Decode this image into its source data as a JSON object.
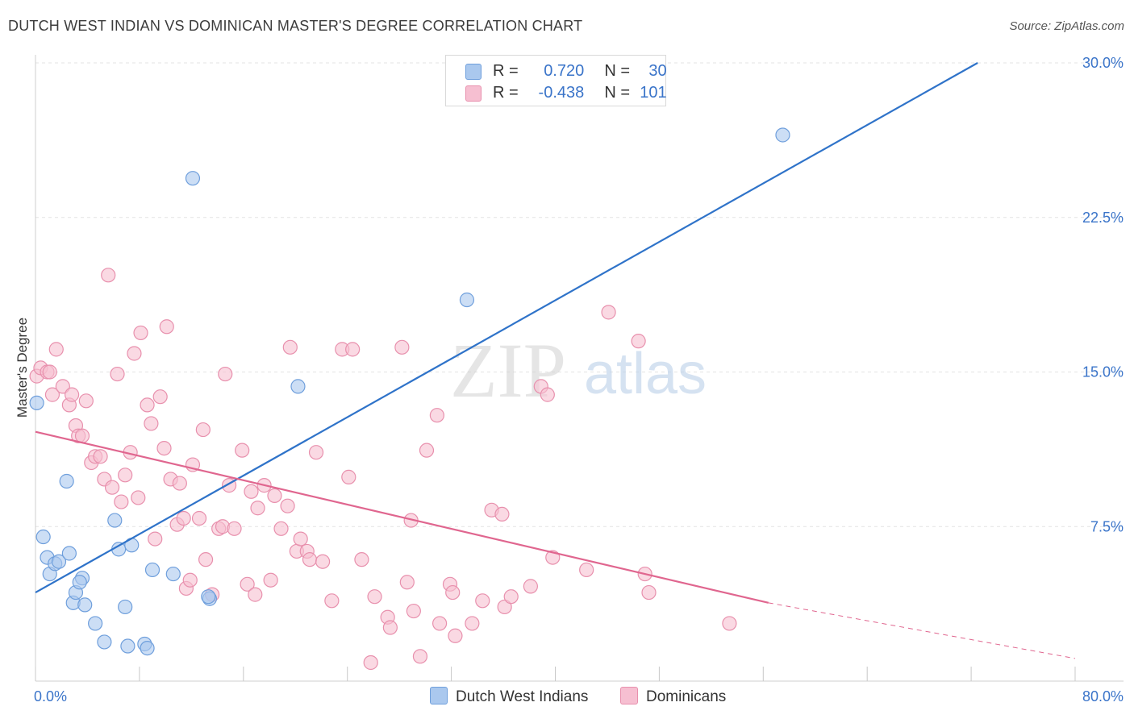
{
  "title": "DUTCH WEST INDIAN VS DOMINICAN MASTER'S DEGREE CORRELATION CHART",
  "source": "Source: ZipAtlas.com",
  "watermark": {
    "zip": "ZIP",
    "atlas": "atlas"
  },
  "legend": {
    "series1": {
      "r_label": "R =",
      "r_value": "0.720",
      "n_label": "N =",
      "n_value": "30"
    },
    "series2": {
      "r_label": "R =",
      "r_value": "-0.438",
      "n_label": "N =",
      "n_value": "101"
    }
  },
  "bottom_legend": {
    "series1": "Dutch West Indians",
    "series2": "Dominicans"
  },
  "colors": {
    "blue_fill": "#aac8ee",
    "blue_stroke": "#6f9fdc",
    "blue_line": "#2f73c9",
    "pink_fill": "#f6bfd1",
    "pink_stroke": "#e890ad",
    "pink_line": "#e0668f",
    "axis_text": "#3a74c9",
    "grid": "#e3e3e3"
  },
  "chart_data": {
    "type": "scatter",
    "title": "DUTCH WEST INDIAN VS DOMINICAN MASTER'S DEGREE CORRELATION CHART",
    "xlabel": "",
    "ylabel": "Master's Degree",
    "xlim": [
      0,
      80
    ],
    "ylim": [
      0,
      30
    ],
    "x_tick_labels": [
      "0.0%",
      "80.0%"
    ],
    "y_ticks": [
      7.5,
      15.0,
      22.5,
      30.0
    ],
    "y_tick_labels": [
      "7.5%",
      "15.0%",
      "22.5%",
      "30.0%"
    ],
    "grid": "horizontal dashed",
    "series": [
      {
        "name": "Dutch West Indians",
        "r": 0.72,
        "n": 30,
        "trend": {
          "x": [
            0,
            72.5
          ],
          "y": [
            4.3,
            30.0
          ]
        },
        "points": [
          [
            0.1,
            13.5
          ],
          [
            0.6,
            7.0
          ],
          [
            0.9,
            6.0
          ],
          [
            1.1,
            5.2
          ],
          [
            1.5,
            5.7
          ],
          [
            1.8,
            5.8
          ],
          [
            2.4,
            9.7
          ],
          [
            2.6,
            6.2
          ],
          [
            3.6,
            5.0
          ],
          [
            2.9,
            3.8
          ],
          [
            3.1,
            4.3
          ],
          [
            3.4,
            4.8
          ],
          [
            3.8,
            3.7
          ],
          [
            4.6,
            2.8
          ],
          [
            5.3,
            1.9
          ],
          [
            6.1,
            7.8
          ],
          [
            6.4,
            6.4
          ],
          [
            6.9,
            3.6
          ],
          [
            7.1,
            1.7
          ],
          [
            7.4,
            6.6
          ],
          [
            8.4,
            1.8
          ],
          [
            8.6,
            1.6
          ],
          [
            9.0,
            5.4
          ],
          [
            10.6,
            5.2
          ],
          [
            12.1,
            24.4
          ],
          [
            13.4,
            4.0
          ],
          [
            20.2,
            14.3
          ],
          [
            33.2,
            18.5
          ],
          [
            57.5,
            26.5
          ],
          [
            13.3,
            4.1
          ]
        ]
      },
      {
        "name": "Dominicans",
        "r": -0.438,
        "n": 101,
        "trend": {
          "x": [
            0,
            56.4
          ],
          "y": [
            12.1,
            3.8
          ]
        },
        "trend_extension": {
          "x": [
            56.4,
            80
          ],
          "y": [
            3.8,
            1.1
          ]
        },
        "points": [
          [
            0.1,
            14.8
          ],
          [
            0.4,
            15.2
          ],
          [
            0.9,
            15.0
          ],
          [
            1.1,
            15.0
          ],
          [
            1.3,
            13.9
          ],
          [
            1.6,
            16.1
          ],
          [
            2.1,
            14.3
          ],
          [
            2.6,
            13.4
          ],
          [
            2.8,
            13.9
          ],
          [
            3.1,
            12.4
          ],
          [
            3.3,
            11.9
          ],
          [
            3.6,
            11.9
          ],
          [
            3.9,
            13.6
          ],
          [
            4.3,
            10.6
          ],
          [
            4.6,
            10.9
          ],
          [
            5.0,
            10.9
          ],
          [
            5.3,
            9.8
          ],
          [
            5.6,
            19.7
          ],
          [
            5.9,
            9.4
          ],
          [
            6.3,
            14.9
          ],
          [
            6.6,
            8.7
          ],
          [
            6.9,
            10.0
          ],
          [
            7.3,
            11.1
          ],
          [
            7.6,
            15.9
          ],
          [
            7.9,
            8.9
          ],
          [
            8.1,
            16.9
          ],
          [
            8.6,
            13.4
          ],
          [
            8.9,
            12.5
          ],
          [
            9.2,
            6.9
          ],
          [
            9.6,
            13.8
          ],
          [
            9.9,
            11.3
          ],
          [
            10.1,
            17.2
          ],
          [
            10.4,
            9.8
          ],
          [
            10.9,
            7.6
          ],
          [
            11.1,
            9.6
          ],
          [
            11.4,
            7.9
          ],
          [
            11.6,
            4.5
          ],
          [
            11.9,
            4.9
          ],
          [
            12.1,
            10.5
          ],
          [
            12.6,
            7.9
          ],
          [
            12.9,
            12.2
          ],
          [
            13.1,
            5.9
          ],
          [
            13.6,
            4.2
          ],
          [
            14.1,
            7.4
          ],
          [
            14.4,
            7.5
          ],
          [
            14.6,
            14.9
          ],
          [
            14.9,
            9.5
          ],
          [
            15.3,
            7.4
          ],
          [
            15.9,
            11.2
          ],
          [
            16.3,
            4.7
          ],
          [
            16.6,
            9.2
          ],
          [
            16.9,
            4.2
          ],
          [
            17.1,
            8.4
          ],
          [
            17.6,
            9.5
          ],
          [
            18.1,
            4.9
          ],
          [
            18.4,
            9.0
          ],
          [
            18.9,
            7.4
          ],
          [
            19.4,
            8.5
          ],
          [
            19.6,
            16.2
          ],
          [
            20.1,
            6.3
          ],
          [
            20.4,
            6.9
          ],
          [
            20.9,
            6.3
          ],
          [
            21.1,
            5.9
          ],
          [
            21.6,
            11.1
          ],
          [
            22.1,
            5.8
          ],
          [
            22.8,
            3.9
          ],
          [
            23.6,
            16.1
          ],
          [
            24.1,
            9.9
          ],
          [
            24.4,
            16.1
          ],
          [
            25.1,
            5.9
          ],
          [
            25.8,
            0.9
          ],
          [
            26.1,
            4.1
          ],
          [
            27.1,
            3.1
          ],
          [
            27.3,
            2.6
          ],
          [
            28.2,
            16.2
          ],
          [
            28.6,
            4.8
          ],
          [
            28.9,
            7.8
          ],
          [
            29.1,
            3.4
          ],
          [
            29.6,
            1.2
          ],
          [
            30.1,
            11.2
          ],
          [
            30.9,
            12.9
          ],
          [
            31.1,
            2.8
          ],
          [
            31.9,
            4.7
          ],
          [
            32.1,
            4.3
          ],
          [
            32.3,
            2.2
          ],
          [
            33.6,
            2.8
          ],
          [
            34.4,
            3.9
          ],
          [
            35.1,
            8.3
          ],
          [
            35.9,
            8.1
          ],
          [
            36.1,
            3.6
          ],
          [
            36.6,
            4.1
          ],
          [
            38.1,
            4.6
          ],
          [
            38.9,
            14.3
          ],
          [
            39.4,
            13.9
          ],
          [
            39.8,
            6.0
          ],
          [
            42.4,
            5.4
          ],
          [
            44.1,
            17.9
          ],
          [
            46.4,
            16.5
          ],
          [
            46.9,
            5.2
          ],
          [
            47.2,
            4.3
          ],
          [
            53.4,
            2.8
          ]
        ]
      }
    ]
  }
}
